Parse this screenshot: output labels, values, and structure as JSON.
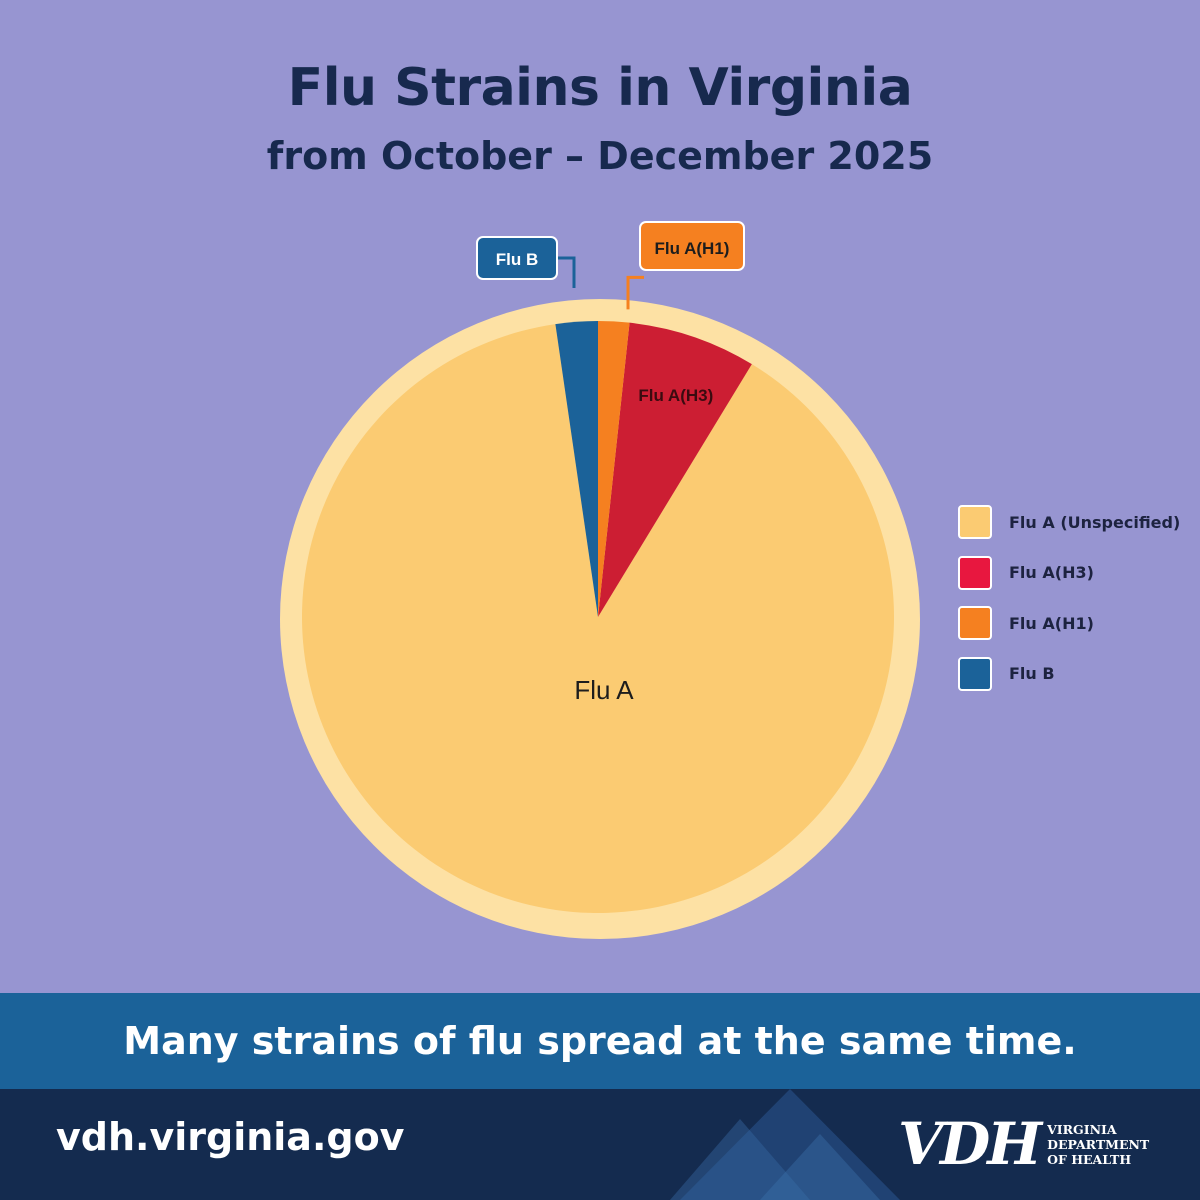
{
  "title": "Flu Strains in Virginia",
  "subtitle": "from October – December 2025",
  "chart_data": {
    "type": "pie",
    "categories": [
      "Flu A",
      "Flu A(H3)",
      "Flu A(H1)",
      "Flu B"
    ],
    "legend_labels": [
      "Flu A (Unspecified)",
      "Flu A(H3)",
      "Flu A(H1)",
      "Flu B"
    ],
    "values": [
      89.0,
      7.0,
      1.7,
      2.3
    ],
    "colors": [
      "#fbcb72",
      "#cc1e33",
      "#f58020",
      "#1b6299"
    ],
    "legend_colors": [
      "#fbcb72",
      "#e8173f",
      "#f58020",
      "#1b6299"
    ],
    "legend_position": "right"
  },
  "banner": {
    "text": "Many strains of flu spread at the same time."
  },
  "footer": {
    "url": "vdh.virginia.gov",
    "logo_letters": "VDH",
    "logo_name": [
      "VIRGINIA",
      "DEPARTMENT",
      "OF HEALTH"
    ]
  }
}
